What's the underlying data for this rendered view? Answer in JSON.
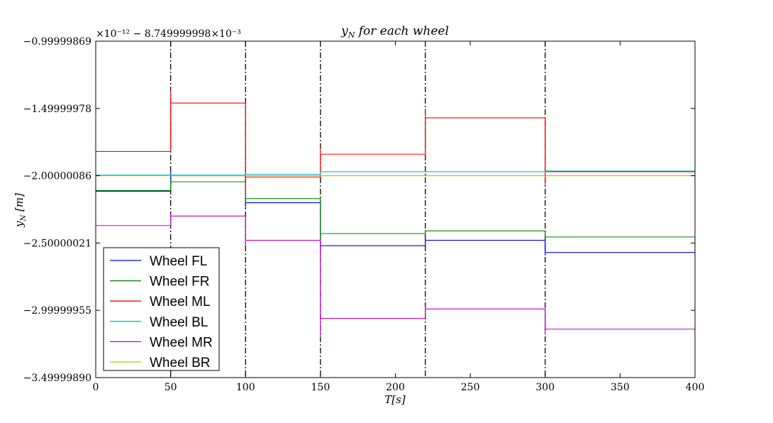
{
  "chart_data": {
    "type": "line",
    "title": "y_N for each wheel",
    "title_parts": {
      "main": "y",
      "sub": "N",
      "rest": " for each wheel"
    },
    "xlabel": "T[s]",
    "ylabel": "y_N [m]",
    "ylabel_parts": {
      "main": "y",
      "sub": "N",
      "rest": " [m]"
    },
    "offset_text": "×10⁻¹² − 8.749999998×10⁻³",
    "xlim": [
      0,
      400
    ],
    "ylim": [
      -3.4999989,
      -0.99999869
    ],
    "x_ticks": [
      0,
      50,
      100,
      150,
      200,
      250,
      300,
      350,
      400
    ],
    "x_tick_labels": [
      "0",
      "50",
      "100",
      "150",
      "200",
      "250",
      "300",
      "350",
      "400"
    ],
    "y_ticks": [
      -0.99999869,
      -1.49999978,
      -2.00000086,
      -2.50000021,
      -2.99999955,
      -3.4999989
    ],
    "y_tick_labels": [
      "−0.99999869",
      "−1.49999978",
      "−2.00000086",
      "−2.50000021",
      "−2.99999955",
      "−3.49999890"
    ],
    "vlines": [
      50,
      100,
      150,
      220,
      300
    ],
    "grid": false,
    "legend_position": "lower-left",
    "series": [
      {
        "name": "Wheel FL",
        "color": "#0000ff",
        "breaks": [
          0,
          50,
          100,
          150,
          220,
          300,
          400
        ],
        "values": [
          -2.115,
          -2.0,
          -2.2,
          -2.52,
          -2.48,
          -2.57
        ]
      },
      {
        "name": "Wheel FR",
        "color": "#008000",
        "breaks": [
          0,
          50,
          100,
          150,
          220,
          300,
          400
        ],
        "values": [
          -2.11,
          -2.045,
          -2.17,
          -2.43,
          -2.41,
          -2.455
        ]
      },
      {
        "name": "Wheel ML",
        "color": "#ff0000",
        "breaks": [
          0,
          50,
          100,
          150,
          220,
          300,
          400
        ],
        "values": [
          -1.82,
          -1.46,
          -2.01,
          -1.84,
          -1.57,
          -1.97
        ]
      },
      {
        "name": "Wheel BL",
        "color": "#00bfbf",
        "breaks": [
          0,
          50,
          100,
          150,
          220,
          300,
          400
        ],
        "values": [
          -1.995,
          -1.995,
          -1.99,
          -1.97,
          -1.97,
          -1.965
        ]
      },
      {
        "name": "Wheel MR",
        "color": "#bf00bf",
        "breaks": [
          0,
          50,
          100,
          150,
          220,
          300,
          400
        ],
        "values": [
          -2.37,
          -2.3,
          -2.48,
          -3.06,
          -2.99,
          -3.14
        ]
      },
      {
        "name": "Wheel BR",
        "color": "#bfbf00",
        "breaks": [
          0,
          50,
          100,
          150,
          220,
          300,
          400
        ],
        "values": [
          -2.0,
          -2.0,
          -2.0,
          -2.0,
          -2.0,
          -2.0
        ]
      }
    ]
  }
}
